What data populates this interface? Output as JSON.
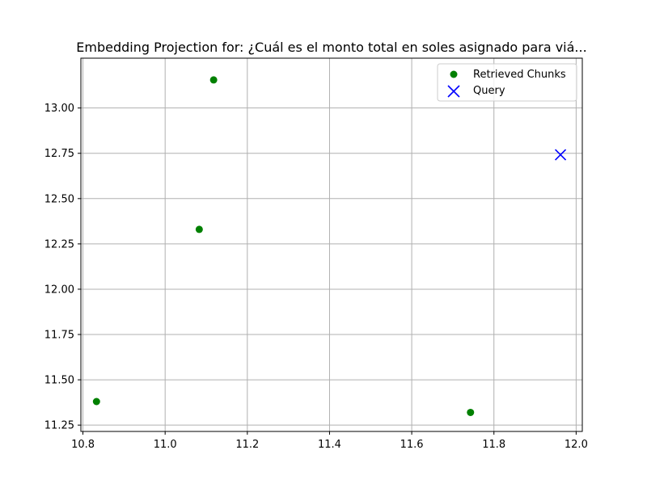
{
  "chart_data": {
    "type": "scatter",
    "title": "Embedding Projection for: ¿Cuál es el monto total en soles asignado para viá...",
    "xlabel": "",
    "ylabel": "",
    "xlim": [
      10.795,
      12.015
    ],
    "ylim": [
      11.215,
      13.275
    ],
    "x_ticks": [
      "10.8",
      "11.0",
      "11.2",
      "11.4",
      "11.6",
      "11.8",
      "12.0"
    ],
    "x_tick_values": [
      10.8,
      11.0,
      11.2,
      11.4,
      11.6,
      11.8,
      12.0
    ],
    "y_ticks": [
      "11.25",
      "11.50",
      "11.75",
      "12.00",
      "12.25",
      "12.50",
      "12.75",
      "13.00"
    ],
    "y_tick_values": [
      11.25,
      11.5,
      11.75,
      12.0,
      12.25,
      12.5,
      12.75,
      13.0
    ],
    "grid": true,
    "legend_position": "top-right",
    "series": [
      {
        "name": "Retrieved Chunks",
        "marker": "circle",
        "color": "#008000",
        "points": [
          {
            "x": 11.118,
            "y": 13.155
          },
          {
            "x": 11.083,
            "y": 12.33
          },
          {
            "x": 10.833,
            "y": 11.38
          },
          {
            "x": 11.743,
            "y": 11.32
          }
        ]
      },
      {
        "name": "Query",
        "marker": "x",
        "color": "#0000ff",
        "points": [
          {
            "x": 11.962,
            "y": 12.742
          }
        ]
      }
    ]
  }
}
